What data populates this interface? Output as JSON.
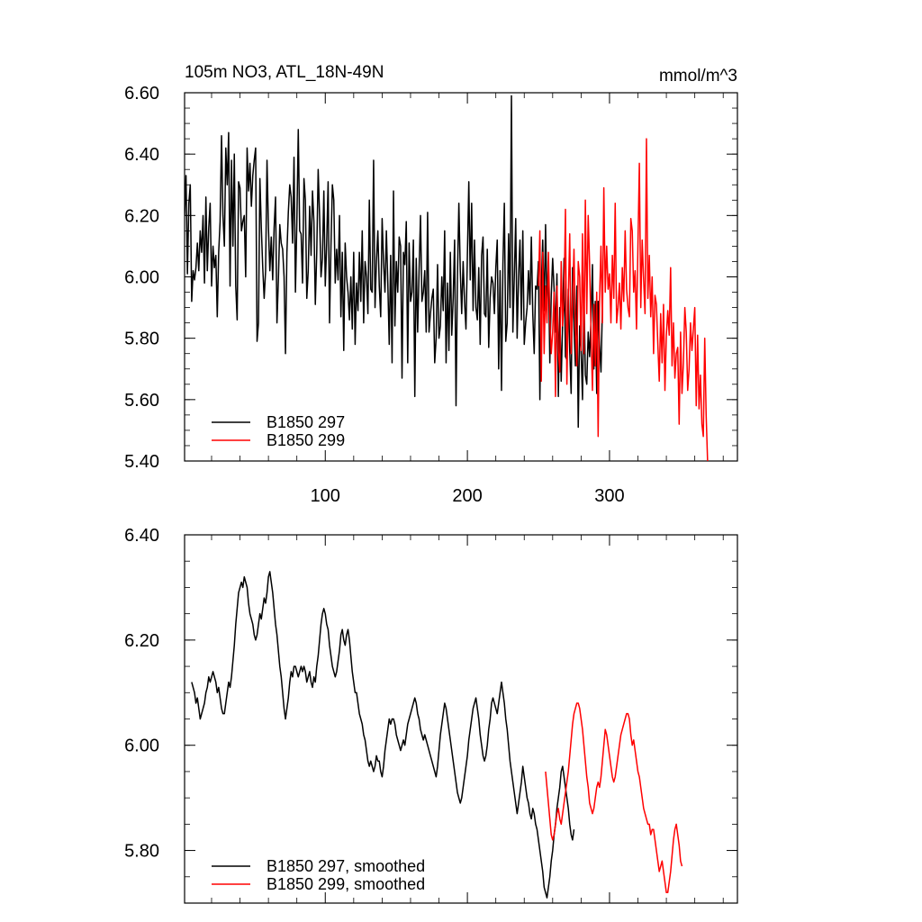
{
  "chart_data": [
    {
      "type": "line",
      "title": "105m NO3, ATL_18N-49N",
      "units": "mmol/m^3",
      "xlim": [
        1,
        390
      ],
      "ylim": [
        5.4,
        6.6
      ],
      "yticks": [
        "6.60",
        "6.40",
        "6.20",
        "6.00",
        "5.80",
        "5.60",
        "5.40"
      ],
      "ytick_values": [
        6.6,
        6.4,
        6.2,
        6.0,
        5.8,
        5.6,
        5.4
      ],
      "xticks": [
        "100",
        "200",
        "300"
      ],
      "xtick_values": [
        100,
        200,
        300
      ],
      "legend_position": "bottom-left",
      "series": [
        {
          "name": "B1850 297",
          "color": "#000000",
          "x_start": 1,
          "values": [
            6.2,
            6.33,
            6.01,
            6.24,
            6.3,
            5.92,
            6.02,
            5.99,
            6.03,
            6.11,
            6.02,
            6.15,
            6.08,
            6.2,
            5.98,
            6.26,
            6.02,
            6.16,
            6.24,
            5.97,
            6.1,
            6.03,
            6.07,
            5.87,
            6.08,
            6.18,
            6.46,
            6.2,
            6.1,
            6.42,
            6.3,
            6.47,
            5.97,
            6.38,
            6.1,
            6.4,
            5.97,
            5.86,
            6.31,
            6.29,
            6.15,
            6.18,
            6.2,
            6.0,
            6.42,
            6.28,
            6.37,
            6.23,
            6.33,
            6.38,
            6.42,
            5.79,
            5.85,
            6.32,
            6.16,
            6.03,
            5.93,
            6.02,
            6.38,
            6.16,
            6.02,
            6.13,
            5.99,
            6.16,
            6.26,
            5.85,
            5.99,
            6.17,
            6.11,
            6.09,
            6.0,
            5.75,
            6.08,
            6.21,
            6.3,
            6.26,
            6.11,
            6.39,
            5.95,
            6.18,
            6.48,
            6.15,
            6.14,
            5.98,
            6.32,
            6.25,
            5.93,
            6.02,
            6.23,
            6.07,
            6.28,
            6.18,
            5.91,
            6.08,
            6.35,
            6.2,
            6.0,
            6.06,
            6.28,
            5.97,
            6.11,
            6.31,
            5.85,
            6.1,
            6.3,
            6.25,
            5.98,
            6.09,
            5.99,
            6.2,
            5.87,
            6.08,
            5.76,
            6.11,
            6.0,
            5.95,
            5.86,
            6.0,
            5.83,
            6.08,
            5.78,
            5.98,
            5.89,
            6.08,
            5.92,
            6.15,
            5.85,
            6.05,
            6.0,
            5.88,
            6.25,
            5.96,
            5.95,
            6.38,
            5.9,
            6.05,
            6.15,
            5.97,
            5.87,
            6.19,
            6.05,
            5.95,
            6.15,
            5.98,
            5.78,
            6.07,
            5.72,
            6.28,
            5.84,
            6.05,
            5.95,
            6.13,
            6.1,
            5.67,
            6.08,
            6.04,
            6.18,
            5.72,
            6.11,
            5.92,
            5.95,
            6.12,
            5.61,
            6.06,
            5.82,
            6.02,
            6.2,
            5.92,
            5.95,
            6.02,
            5.82,
            6.21,
            5.82,
            5.88,
            5.93,
            5.96,
            5.72,
            5.8,
            6.04,
            5.8,
            5.84,
            6.0,
            5.89,
            6.15,
            5.72,
            5.98,
            5.76,
            6.08,
            5.81,
            5.93,
            6.12,
            5.58,
            6.0,
            6.24,
            6.02,
            5.88,
            6.05,
            5.92,
            5.83,
            6.07,
            6.31,
            5.99,
            6.24,
            5.89,
            6.12,
            5.9,
            5.86,
            6.03,
            5.78,
            6.07,
            6.13,
            5.88,
            5.87,
            6.09,
            5.77,
            5.93,
            6.0,
            5.98,
            5.88,
            6.03,
            6.12,
            5.7,
            6.02,
            5.63,
            6.04,
            6.24,
            5.79,
            5.85,
            6.14,
            5.9,
            6.59,
            5.82,
            6.0,
            6.19,
            5.8,
            6.0,
            6.12,
            5.86,
            6.15,
            5.78,
            5.85,
            5.9,
            6.02,
            5.91,
            6.13,
            5.88,
            5.75,
            5.97,
            5.96,
            6.05,
            5.6,
            5.97,
            6.12,
            5.89,
            6.17,
            5.91,
            6.05,
            5.72,
            5.94,
            6.06,
            5.96,
            5.82,
            6.01,
            5.61,
            5.9,
            5.66,
            5.85,
            6.06,
            5.74,
            5.73,
            5.96,
            5.76,
            5.62,
            6.03,
            5.84,
            5.71,
            5.97,
            5.51,
            5.84,
            5.76,
            5.6,
            5.95,
            5.68,
            5.65,
            5.82,
            5.74,
            5.86,
            6.04,
            5.7,
            5.92,
            5.62,
            5.92,
            5.78,
            5.69,
            5.9
          ]
        },
        {
          "name": "B1850 299",
          "color": "#ff0000",
          "x_start": 250,
          "values": [
            5.97,
            6.15,
            5.66,
            6.08,
            5.75,
            5.97,
            5.85,
            6.08,
            5.87,
            5.75,
            5.82,
            5.95,
            5.61,
            5.97,
            5.76,
            5.69,
            6.05,
            5.84,
            5.93,
            6.22,
            5.65,
            5.93,
            6.14,
            5.75,
            5.92,
            6.09,
            5.83,
            5.71,
            6.05,
            6.0,
            5.76,
            6.14,
            5.75,
            6.25,
            5.88,
            6.2,
            6.04,
            5.82,
            5.63,
            5.91,
            5.71,
            5.95,
            5.48,
            5.93,
            6.1,
            5.85,
            6.29,
            5.95,
            6.1,
            5.96,
            6.01,
            5.85,
            6.07,
            5.93,
            6.24,
            5.85,
            5.9,
            5.98,
            5.83,
            6.03,
            5.92,
            6.15,
            5.96,
            5.9,
            5.87,
            6.19,
            6.15,
            5.95,
            6.02,
            5.83,
            6.1,
            6.37,
            5.9,
            6.12,
            5.99,
            5.88,
            6.45,
            5.93,
            6.07,
            5.87,
            6.0,
            5.75,
            5.94,
            5.91,
            5.78,
            5.66,
            5.88,
            5.72,
            5.91,
            5.63,
            5.81,
            5.89,
            5.81,
            6.03,
            5.71,
            5.85,
            5.67,
            5.75,
            5.77,
            5.52,
            5.82,
            5.62,
            5.72,
            5.9,
            5.82,
            5.63,
            5.7,
            5.85,
            5.76,
            5.83,
            5.9,
            5.58,
            5.81,
            5.57,
            5.68,
            5.52,
            5.48,
            5.8,
            5.55,
            5.4
          ]
        }
      ]
    },
    {
      "type": "line",
      "xlim": [
        1,
        390
      ],
      "ylim": [
        5.7,
        6.4
      ],
      "yticks": [
        "6.40",
        "6.20",
        "6.00",
        "5.80"
      ],
      "ytick_values": [
        6.4,
        6.2,
        6.0,
        5.8
      ],
      "xtick_values": [
        100,
        200,
        300
      ],
      "legend_position": "bottom-left",
      "series": [
        {
          "name": "B1850 297, smoothed",
          "color": "#000000",
          "x_start": 6,
          "values": [
            6.12,
            6.11,
            6.1,
            6.08,
            6.09,
            6.07,
            6.05,
            6.06,
            6.07,
            6.08,
            6.1,
            6.11,
            6.13,
            6.12,
            6.13,
            6.14,
            6.13,
            6.12,
            6.1,
            6.11,
            6.09,
            6.07,
            6.06,
            6.06,
            6.08,
            6.1,
            6.12,
            6.11,
            6.13,
            6.16,
            6.19,
            6.23,
            6.26,
            6.29,
            6.3,
            6.31,
            6.3,
            6.32,
            6.31,
            6.3,
            6.27,
            6.25,
            6.24,
            6.23,
            6.21,
            6.2,
            6.21,
            6.23,
            6.25,
            6.24,
            6.26,
            6.28,
            6.27,
            6.29,
            6.32,
            6.33,
            6.31,
            6.29,
            6.26,
            6.23,
            6.21,
            6.18,
            6.15,
            6.13,
            6.1,
            6.07,
            6.05,
            6.07,
            6.09,
            6.12,
            6.14,
            6.13,
            6.15,
            6.15,
            6.14,
            6.13,
            6.14,
            6.15,
            6.14,
            6.15,
            6.14,
            6.12,
            6.13,
            6.14,
            6.12,
            6.11,
            6.13,
            6.12,
            6.15,
            6.17,
            6.2,
            6.23,
            6.25,
            6.26,
            6.25,
            6.23,
            6.22,
            6.19,
            6.17,
            6.15,
            6.14,
            6.13,
            6.14,
            6.16,
            6.18,
            6.21,
            6.22,
            6.2,
            6.19,
            6.21,
            6.22,
            6.2,
            6.17,
            6.14,
            6.12,
            6.1,
            6.1,
            6.08,
            6.06,
            6.05,
            6.04,
            6.02,
            6.01,
            5.99,
            5.97,
            5.96,
            5.97,
            5.96,
            5.95,
            5.96,
            5.98,
            5.97,
            5.97,
            5.95,
            5.94,
            5.96,
            5.99,
            6.01,
            6.03,
            6.05,
            6.04,
            6.05,
            6.05,
            6.04,
            6.02,
            6.01,
            6.0,
            5.99,
            6.0,
            6.01,
            6.0,
            6.02,
            6.04,
            6.05,
            6.06,
            6.07,
            6.08,
            6.09,
            6.08,
            6.06,
            6.05,
            6.03,
            6.02,
            6.01,
            6.02,
            6.01,
            6.0,
            5.99,
            5.98,
            5.97,
            5.96,
            5.95,
            5.94,
            5.96,
            5.99,
            6.02,
            6.04,
            6.06,
            6.08,
            6.07,
            6.05,
            6.03,
            6.01,
            5.99,
            5.97,
            5.95,
            5.93,
            5.91,
            5.9,
            5.89,
            5.9,
            5.92,
            5.94,
            5.96,
            5.98,
            6.01,
            6.03,
            6.05,
            6.07,
            6.08,
            6.09,
            6.07,
            6.05,
            6.02,
            6.0,
            5.98,
            5.97,
            5.98,
            6.0,
            6.03,
            6.05,
            6.08,
            6.09,
            6.08,
            6.07,
            6.06,
            6.08,
            6.1,
            6.12,
            6.1,
            6.08,
            6.05,
            6.03,
            6.0,
            5.97,
            5.95,
            5.93,
            5.91,
            5.89,
            5.87,
            5.89,
            5.91,
            5.93,
            5.96,
            5.94,
            5.92,
            5.9,
            5.89,
            5.87,
            5.86,
            5.88,
            5.87,
            5.85,
            5.84,
            5.82,
            5.8,
            5.78,
            5.76,
            5.73,
            5.72,
            5.71,
            5.73,
            5.75,
            5.78,
            5.8,
            5.83,
            5.85,
            5.88,
            5.9,
            5.92,
            5.95,
            5.96,
            5.94,
            5.92,
            5.9,
            5.88,
            5.85,
            5.83,
            5.82,
            5.84
          ]
        },
        {
          "name": "B1850 299, smoothed",
          "color": "#ff0000",
          "x_start": 255,
          "values": [
            5.95,
            5.92,
            5.89,
            5.86,
            5.83,
            5.82,
            5.83,
            5.85,
            5.87,
            5.88,
            5.86,
            5.85,
            5.87,
            5.89,
            5.91,
            5.93,
            5.95,
            5.98,
            6.01,
            6.04,
            6.06,
            6.07,
            6.08,
            6.08,
            6.07,
            6.05,
            6.03,
            6.0,
            5.97,
            5.94,
            5.92,
            5.89,
            5.88,
            5.87,
            5.88,
            5.9,
            5.92,
            5.93,
            5.92,
            5.94,
            5.97,
            6.0,
            6.03,
            6.02,
            6.0,
            5.98,
            5.96,
            5.94,
            5.93,
            5.94,
            5.96,
            5.98,
            6.0,
            6.02,
            6.03,
            6.04,
            6.05,
            6.06,
            6.06,
            6.05,
            6.02,
            6.0,
            6.01,
            5.99,
            5.97,
            5.95,
            5.94,
            5.92,
            5.9,
            5.88,
            5.87,
            5.86,
            5.85,
            5.85,
            5.83,
            5.84,
            5.84,
            5.82,
            5.8,
            5.78,
            5.76,
            5.77,
            5.78,
            5.76,
            5.74,
            5.72,
            5.72,
            5.74,
            5.76,
            5.79,
            5.82,
            5.84,
            5.85,
            5.83,
            5.81,
            5.78,
            5.77
          ]
        }
      ]
    }
  ]
}
